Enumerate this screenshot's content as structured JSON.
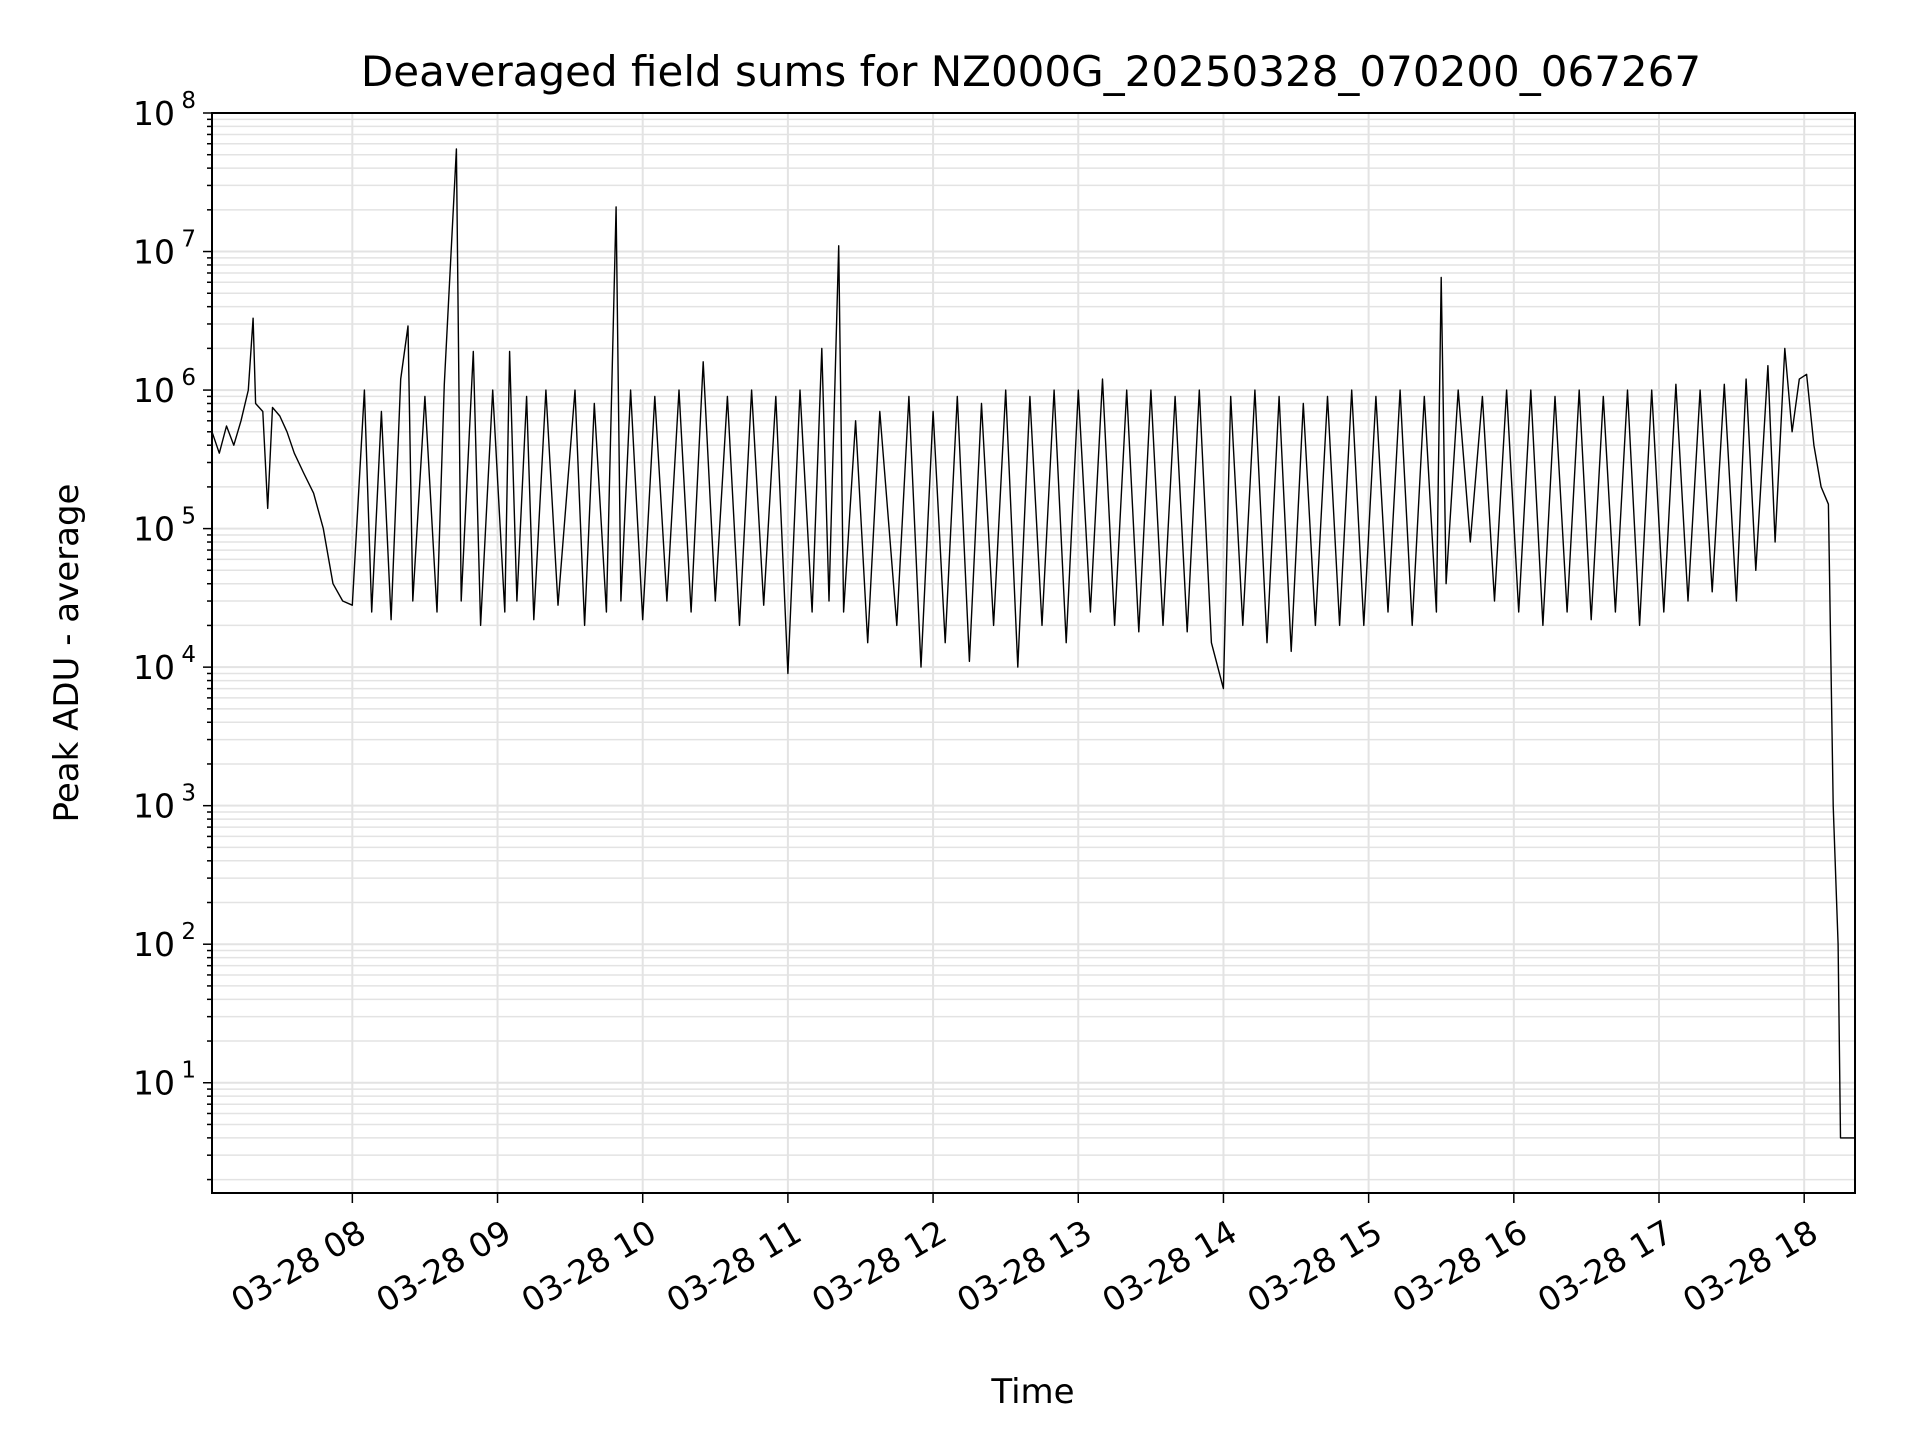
{
  "chart_data": {
    "type": "line",
    "title": "Deaveraged field sums for NZ000G_20250328_070200_067267",
    "xlabel": "Time",
    "ylabel": "Peak ADU - average",
    "yscale": "log",
    "ylim": [
      1.6,
      100000000
    ],
    "xlim": [
      "03-28 07:02",
      "03-28 18:21"
    ],
    "grid": true,
    "x_ticks": [
      "03-28 08",
      "03-28 09",
      "03-28 10",
      "03-28 11",
      "03-28 12",
      "03-28 13",
      "03-28 14",
      "03-28 15",
      "03-28 16",
      "03-28 17",
      "03-28 18"
    ],
    "y_ticks": [
      {
        "base": "10",
        "exp": "1"
      },
      {
        "base": "10",
        "exp": "2"
      },
      {
        "base": "10",
        "exp": "3"
      },
      {
        "base": "10",
        "exp": "4"
      },
      {
        "base": "10",
        "exp": "5"
      },
      {
        "base": "10",
        "exp": "6"
      },
      {
        "base": "10",
        "exp": "7"
      },
      {
        "base": "10",
        "exp": "8"
      }
    ],
    "line_color": "#000000",
    "grid_color": "#e3e3e3",
    "series": [
      {
        "points": [
          [
            "03-28 07:02",
            500000
          ],
          [
            "03-28 07:05",
            350000
          ],
          [
            "03-28 07:08",
            550000
          ],
          [
            "03-28 07:11",
            400000
          ],
          [
            "03-28 07:14",
            600000
          ],
          [
            "03-28 07:17",
            1000000
          ],
          [
            "03-28 07:19",
            3300000
          ],
          [
            "03-28 07:20",
            800000
          ],
          [
            "03-28 07:23",
            700000
          ],
          [
            "03-28 07:25",
            140000
          ],
          [
            "03-28 07:27",
            750000
          ],
          [
            "03-28 07:30",
            650000
          ],
          [
            "03-28 07:33",
            500000
          ],
          [
            "03-28 07:36",
            350000
          ],
          [
            "03-28 07:40",
            250000
          ],
          [
            "03-28 07:44",
            180000
          ],
          [
            "03-28 07:48",
            100000
          ],
          [
            "03-28 07:52",
            40000
          ],
          [
            "03-28 07:56",
            30000
          ],
          [
            "03-28 08:00",
            28000
          ],
          [
            "03-28 08:05",
            1000000
          ],
          [
            "03-28 08:08",
            25000
          ],
          [
            "03-28 08:12",
            700000
          ],
          [
            "03-28 08:16",
            22000
          ],
          [
            "03-28 08:20",
            1200000
          ],
          [
            "03-28 08:23",
            2900000
          ],
          [
            "03-28 08:25",
            30000
          ],
          [
            "03-28 08:30",
            900000
          ],
          [
            "03-28 08:35",
            25000
          ],
          [
            "03-28 08:38",
            1100000
          ],
          [
            "03-28 08:43",
            55000000
          ],
          [
            "03-28 08:45",
            30000
          ],
          [
            "03-28 08:50",
            1900000
          ],
          [
            "03-28 08:53",
            20000
          ],
          [
            "03-28 08:58",
            1000000
          ],
          [
            "03-28 09:03",
            25000
          ],
          [
            "03-28 09:05",
            1900000
          ],
          [
            "03-28 09:08",
            30000
          ],
          [
            "03-28 09:12",
            900000
          ],
          [
            "03-28 09:15",
            22000
          ],
          [
            "03-28 09:20",
            1000000
          ],
          [
            "03-28 09:25",
            28000
          ],
          [
            "03-28 09:32",
            1000000
          ],
          [
            "03-28 09:36",
            20000
          ],
          [
            "03-28 09:40",
            800000
          ],
          [
            "03-28 09:45",
            25000
          ],
          [
            "03-28 09:49",
            21000000
          ],
          [
            "03-28 09:51",
            30000
          ],
          [
            "03-28 09:55",
            1000000
          ],
          [
            "03-28 10:00",
            22000
          ],
          [
            "03-28 10:05",
            900000
          ],
          [
            "03-28 10:10",
            30000
          ],
          [
            "03-28 10:15",
            1000000
          ],
          [
            "03-28 10:20",
            25000
          ],
          [
            "03-28 10:25",
            1600000
          ],
          [
            "03-28 10:30",
            30000
          ],
          [
            "03-28 10:35",
            900000
          ],
          [
            "03-28 10:40",
            20000
          ],
          [
            "03-28 10:45",
            1000000
          ],
          [
            "03-28 10:50",
            28000
          ],
          [
            "03-28 10:55",
            900000
          ],
          [
            "03-28 11:00",
            9000
          ],
          [
            "03-28 11:05",
            1000000
          ],
          [
            "03-28 11:10",
            25000
          ],
          [
            "03-28 11:14",
            2000000
          ],
          [
            "03-28 11:17",
            30000
          ],
          [
            "03-28 11:21",
            11000000
          ],
          [
            "03-28 11:23",
            25000
          ],
          [
            "03-28 11:28",
            600000
          ],
          [
            "03-28 11:33",
            15000
          ],
          [
            "03-28 11:38",
            700000
          ],
          [
            "03-28 11:45",
            20000
          ],
          [
            "03-28 11:50",
            900000
          ],
          [
            "03-28 11:55",
            10000
          ],
          [
            "03-28 12:00",
            700000
          ],
          [
            "03-28 12:05",
            15000
          ],
          [
            "03-28 12:10",
            900000
          ],
          [
            "03-28 12:15",
            11000
          ],
          [
            "03-28 12:20",
            800000
          ],
          [
            "03-28 12:25",
            20000
          ],
          [
            "03-28 12:30",
            1000000
          ],
          [
            "03-28 12:35",
            10000
          ],
          [
            "03-28 12:40",
            900000
          ],
          [
            "03-28 12:45",
            20000
          ],
          [
            "03-28 12:50",
            1000000
          ],
          [
            "03-28 12:55",
            15000
          ],
          [
            "03-28 13:00",
            1000000
          ],
          [
            "03-28 13:05",
            25000
          ],
          [
            "03-28 13:10",
            1200000
          ],
          [
            "03-28 13:15",
            20000
          ],
          [
            "03-28 13:20",
            1000000
          ],
          [
            "03-28 13:25",
            18000
          ],
          [
            "03-28 13:30",
            1000000
          ],
          [
            "03-28 13:35",
            20000
          ],
          [
            "03-28 13:40",
            900000
          ],
          [
            "03-28 13:45",
            18000
          ],
          [
            "03-28 13:50",
            1000000
          ],
          [
            "03-28 13:55",
            15000
          ],
          [
            "03-28 14:00",
            7000
          ],
          [
            "03-28 14:03",
            900000
          ],
          [
            "03-28 14:08",
            20000
          ],
          [
            "03-28 14:13",
            1000000
          ],
          [
            "03-28 14:18",
            15000
          ],
          [
            "03-28 14:23",
            900000
          ],
          [
            "03-28 14:28",
            13000
          ],
          [
            "03-28 14:33",
            800000
          ],
          [
            "03-28 14:38",
            20000
          ],
          [
            "03-28 14:43",
            900000
          ],
          [
            "03-28 14:48",
            20000
          ],
          [
            "03-28 14:53",
            1000000
          ],
          [
            "03-28 14:58",
            20000
          ],
          [
            "03-28 15:03",
            900000
          ],
          [
            "03-28 15:08",
            25000
          ],
          [
            "03-28 15:13",
            1000000
          ],
          [
            "03-28 15:18",
            20000
          ],
          [
            "03-28 15:23",
            900000
          ],
          [
            "03-28 15:28",
            25000
          ],
          [
            "03-28 15:30",
            6500000
          ],
          [
            "03-28 15:32",
            40000
          ],
          [
            "03-28 15:37",
            1000000
          ],
          [
            "03-28 15:42",
            80000
          ],
          [
            "03-28 15:47",
            900000
          ],
          [
            "03-28 15:52",
            30000
          ],
          [
            "03-28 15:57",
            1000000
          ],
          [
            "03-28 16:02",
            25000
          ],
          [
            "03-28 16:07",
            1000000
          ],
          [
            "03-28 16:12",
            20000
          ],
          [
            "03-28 16:17",
            900000
          ],
          [
            "03-28 16:22",
            25000
          ],
          [
            "03-28 16:27",
            1000000
          ],
          [
            "03-28 16:32",
            22000
          ],
          [
            "03-28 16:37",
            900000
          ],
          [
            "03-28 16:42",
            25000
          ],
          [
            "03-28 16:47",
            1000000
          ],
          [
            "03-28 16:52",
            20000
          ],
          [
            "03-28 16:57",
            1000000
          ],
          [
            "03-28 17:02",
            25000
          ],
          [
            "03-28 17:07",
            1100000
          ],
          [
            "03-28 17:12",
            30000
          ],
          [
            "03-28 17:17",
            1000000
          ],
          [
            "03-28 17:22",
            35000
          ],
          [
            "03-28 17:27",
            1100000
          ],
          [
            "03-28 17:32",
            30000
          ],
          [
            "03-28 17:36",
            1200000
          ],
          [
            "03-28 17:40",
            50000
          ],
          [
            "03-28 17:45",
            1500000
          ],
          [
            "03-28 17:48",
            80000
          ],
          [
            "03-28 17:52",
            2000000
          ],
          [
            "03-28 17:55",
            500000
          ],
          [
            "03-28 17:58",
            1200000
          ],
          [
            "03-28 18:01",
            1300000
          ],
          [
            "03-28 18:04",
            400000
          ],
          [
            "03-28 18:07",
            200000
          ],
          [
            "03-28 18:10",
            150000
          ],
          [
            "03-28 18:12",
            1000
          ],
          [
            "03-28 18:14",
            100
          ],
          [
            "03-28 18:15",
            4
          ],
          [
            "03-28 18:21",
            4
          ]
        ]
      }
    ]
  }
}
